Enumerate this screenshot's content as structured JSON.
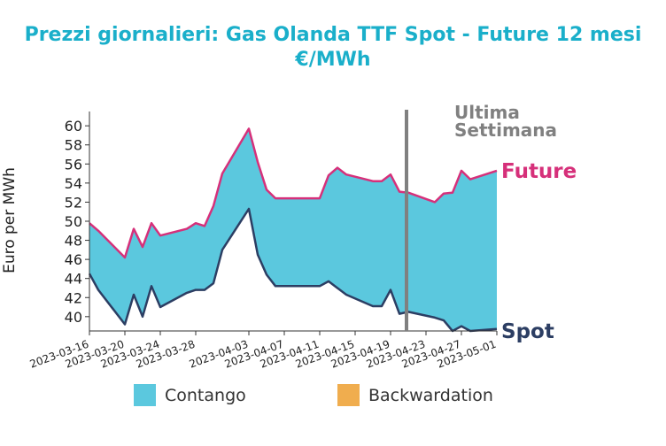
{
  "chart_data": {
    "type": "area",
    "title": "Prezzi giornalieri: Gas Olanda TTF Spot - Future 12 mesi",
    "subtitle": "€/MWh",
    "ylabel": "Euro per MWh",
    "xlabel": "",
    "ylim": [
      38.5,
      61.5
    ],
    "xlim": [
      "2023-03-16",
      "2023-05-01"
    ],
    "y_ticks": [
      40,
      42,
      44,
      46,
      48,
      50,
      52,
      54,
      56,
      58,
      60
    ],
    "x_ticks": [
      "2023-03-16",
      "2023-03-20",
      "2023-03-24",
      "2023-03-28",
      "2023-04-03",
      "2023-04-07",
      "2023-04-11",
      "2023-04-15",
      "2023-04-19",
      "2023-04-23",
      "2023-04-27",
      "2023-05-01"
    ],
    "grid": false,
    "colors": {
      "future": "#d6307a",
      "spot": "#2c3e63",
      "contango": "#5bc8de",
      "backwardation": "#f0ad4e",
      "title": "#1aafca",
      "annotation": "#808080"
    },
    "series": [
      {
        "name": "Future",
        "x": [
          "2023-03-16",
          "2023-03-17",
          "2023-03-20",
          "2023-03-21",
          "2023-03-22",
          "2023-03-23",
          "2023-03-24",
          "2023-03-27",
          "2023-03-28",
          "2023-03-29",
          "2023-03-30",
          "2023-03-31",
          "2023-04-03",
          "2023-04-04",
          "2023-04-05",
          "2023-04-06",
          "2023-04-11",
          "2023-04-12",
          "2023-04-13",
          "2023-04-14",
          "2023-04-17",
          "2023-04-18",
          "2023-04-19",
          "2023-04-20",
          "2023-04-21",
          "2023-04-24",
          "2023-04-25",
          "2023-04-26",
          "2023-04-27",
          "2023-04-28",
          "2023-05-01"
        ],
        "values": [
          49.8,
          49.0,
          46.2,
          49.2,
          47.3,
          49.8,
          48.5,
          49.2,
          49.8,
          49.5,
          51.6,
          55.0,
          59.7,
          56.2,
          53.3,
          52.4,
          52.4,
          54.8,
          55.6,
          54.9,
          54.2,
          54.2,
          54.9,
          53.1,
          53.0,
          52.0,
          52.9,
          53.0,
          55.3,
          54.4,
          55.3
        ]
      },
      {
        "name": "Spot",
        "x": [
          "2023-03-16",
          "2023-03-17",
          "2023-03-20",
          "2023-03-21",
          "2023-03-22",
          "2023-03-23",
          "2023-03-24",
          "2023-03-27",
          "2023-03-28",
          "2023-03-29",
          "2023-03-30",
          "2023-03-31",
          "2023-04-03",
          "2023-04-04",
          "2023-04-05",
          "2023-04-06",
          "2023-04-11",
          "2023-04-12",
          "2023-04-13",
          "2023-04-14",
          "2023-04-17",
          "2023-04-18",
          "2023-04-19",
          "2023-04-20",
          "2023-04-21",
          "2023-04-24",
          "2023-04-25",
          "2023-04-26",
          "2023-04-27",
          "2023-04-28",
          "2023-05-01"
        ],
        "values": [
          44.5,
          42.8,
          39.2,
          42.3,
          40.0,
          43.2,
          41.0,
          42.5,
          42.8,
          42.8,
          43.5,
          47.0,
          51.3,
          46.5,
          44.4,
          43.2,
          43.2,
          43.7,
          43.0,
          42.3,
          41.1,
          41.1,
          42.8,
          40.3,
          40.5,
          39.9,
          39.6,
          38.5,
          39.0,
          38.5,
          38.7
        ]
      }
    ],
    "legend": {
      "placement": "bottom",
      "entries": [
        {
          "label": "Contango",
          "color": "#5bc8de"
        },
        {
          "label": "Backwardation",
          "color": "#f0ad4e"
        }
      ]
    },
    "annotations": {
      "vline_x": "2023-04-21",
      "vline_label_lines": [
        "Ultima",
        "Settimana"
      ],
      "end_labels": {
        "future": "Future",
        "spot": "Spot"
      }
    }
  }
}
